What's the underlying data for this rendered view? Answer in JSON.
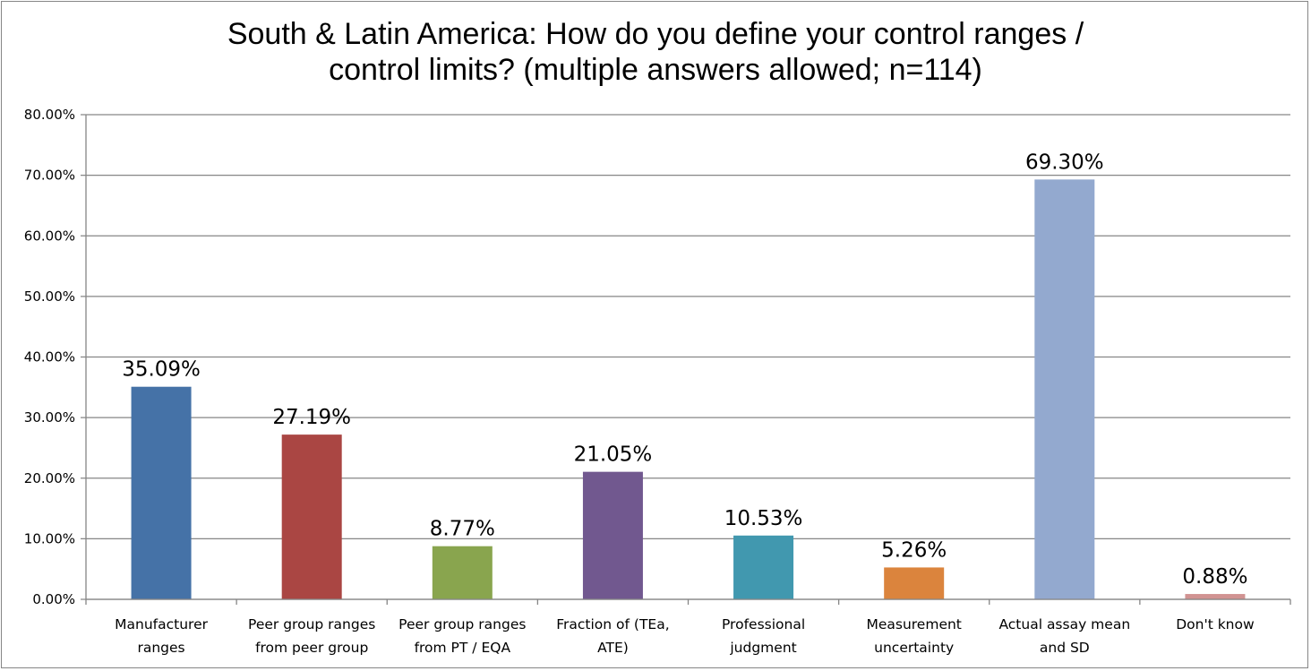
{
  "chart_data": {
    "type": "bar",
    "title_lines": [
      "South & Latin America: How do you define your control ranges /",
      "control limits? (multiple answers allowed; n=114)"
    ],
    "categories": [
      [
        "Manufacturer",
        "ranges"
      ],
      [
        "Peer group ranges",
        "from peer group"
      ],
      [
        "Peer group ranges",
        "from PT / EQA"
      ],
      [
        "Fraction of (TEa,",
        "ATE)"
      ],
      [
        "Professional",
        "judgment"
      ],
      [
        "Measurement",
        "uncertainty"
      ],
      [
        "Actual assay mean",
        "and SD"
      ],
      [
        "Don't know"
      ]
    ],
    "values": [
      35.09,
      27.19,
      8.77,
      21.05,
      10.53,
      5.26,
      69.3,
      0.88
    ],
    "data_labels": [
      "35.09%",
      "27.19%",
      "8.77%",
      "21.05%",
      "10.53%",
      "5.26%",
      "69.30%",
      "0.88%"
    ],
    "colors": [
      "#4572a7",
      "#aa4643",
      "#89a54e",
      "#71588f",
      "#4198af",
      "#db843d",
      "#93a9cf",
      "#d19392"
    ],
    "ylim": [
      0,
      80
    ],
    "yticks": [
      "0.00%",
      "10.00%",
      "20.00%",
      "30.00%",
      "40.00%",
      "50.00%",
      "60.00%",
      "70.00%",
      "80.00%"
    ],
    "grid": true,
    "legend": "none",
    "xlabel": "",
    "ylabel": ""
  }
}
